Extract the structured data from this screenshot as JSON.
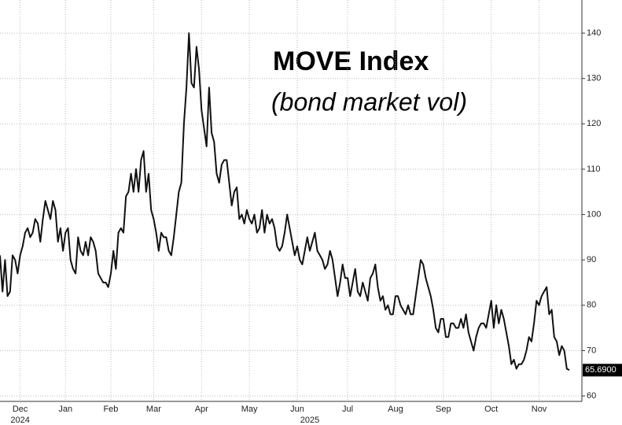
{
  "chart_data": {
    "type": "line",
    "title": "MOVE Index",
    "subtitle": "(bond market vol)",
    "color": "#111111",
    "values": [
      91,
      83,
      90,
      82,
      83,
      91,
      90,
      87,
      91,
      93,
      96,
      97,
      95,
      96,
      99,
      98,
      94,
      99,
      103,
      101,
      99,
      103,
      101,
      94,
      97,
      92,
      96,
      97,
      90,
      88,
      87,
      95,
      92,
      91,
      94,
      91,
      95,
      94,
      92,
      87,
      86,
      85,
      85,
      84,
      87,
      92,
      88,
      96,
      97,
      96,
      104,
      105,
      109,
      105,
      110,
      105,
      112,
      114,
      105,
      109,
      101,
      99,
      96,
      92,
      96,
      95,
      95,
      92,
      91,
      95,
      100,
      105,
      107,
      120,
      128,
      140,
      129,
      128,
      137,
      132,
      123,
      119,
      115,
      128,
      118,
      116,
      109,
      107,
      111,
      112,
      112,
      107,
      102,
      105,
      106,
      99,
      100,
      98,
      101,
      99,
      98,
      100,
      96,
      97,
      101,
      96,
      100,
      98,
      99,
      97,
      93,
      92,
      93,
      96,
      100,
      97,
      94,
      91,
      93,
      90,
      89,
      92,
      95,
      92,
      94,
      96,
      92,
      91,
      90,
      88,
      89,
      92,
      90,
      86,
      82,
      85,
      89,
      86,
      86,
      82,
      85,
      88,
      83,
      82,
      85,
      83,
      81,
      86,
      87,
      89,
      84,
      81,
      82,
      79,
      80,
      78,
      78,
      82,
      82,
      80,
      79,
      78,
      80,
      78,
      78,
      82,
      86,
      90,
      89,
      86,
      84,
      82,
      79,
      75,
      74,
      77,
      77,
      73,
      73,
      76,
      76,
      75,
      75,
      77,
      75,
      78,
      74,
      72,
      70,
      73,
      75,
      76,
      76,
      75,
      78,
      81,
      75,
      80,
      76,
      79,
      77,
      74,
      71,
      67,
      68,
      66,
      67,
      67,
      68,
      70,
      73,
      72,
      76,
      81,
      80,
      82,
      83,
      84,
      78,
      79,
      73,
      72,
      69,
      71,
      70,
      66,
      65.69
    ],
    "last_label": "65.6900",
    "xlim": [
      0,
      231
    ],
    "xticks": [
      {
        "value": 8,
        "label": "Dec"
      },
      {
        "value": 26,
        "label": "Jan"
      },
      {
        "value": 44,
        "label": "Feb"
      },
      {
        "value": 61,
        "label": "Mar"
      },
      {
        "value": 80,
        "label": "Apr"
      },
      {
        "value": 99,
        "label": "May"
      },
      {
        "value": 118,
        "label": "Jun"
      },
      {
        "value": 138,
        "label": "Jul"
      },
      {
        "value": 157,
        "label": "Aug"
      },
      {
        "value": 176,
        "label": "Sep"
      },
      {
        "value": 195,
        "label": "Oct"
      },
      {
        "value": 214,
        "label": "Nov"
      }
    ],
    "year_labels": [
      {
        "value": 8,
        "label": "2024"
      },
      {
        "value": 123,
        "label": "2025"
      }
    ],
    "ylim": [
      58.8,
      147.3
    ],
    "yticks": [
      60,
      70,
      80,
      90,
      100,
      110,
      120,
      130,
      140
    ],
    "grid": true
  }
}
